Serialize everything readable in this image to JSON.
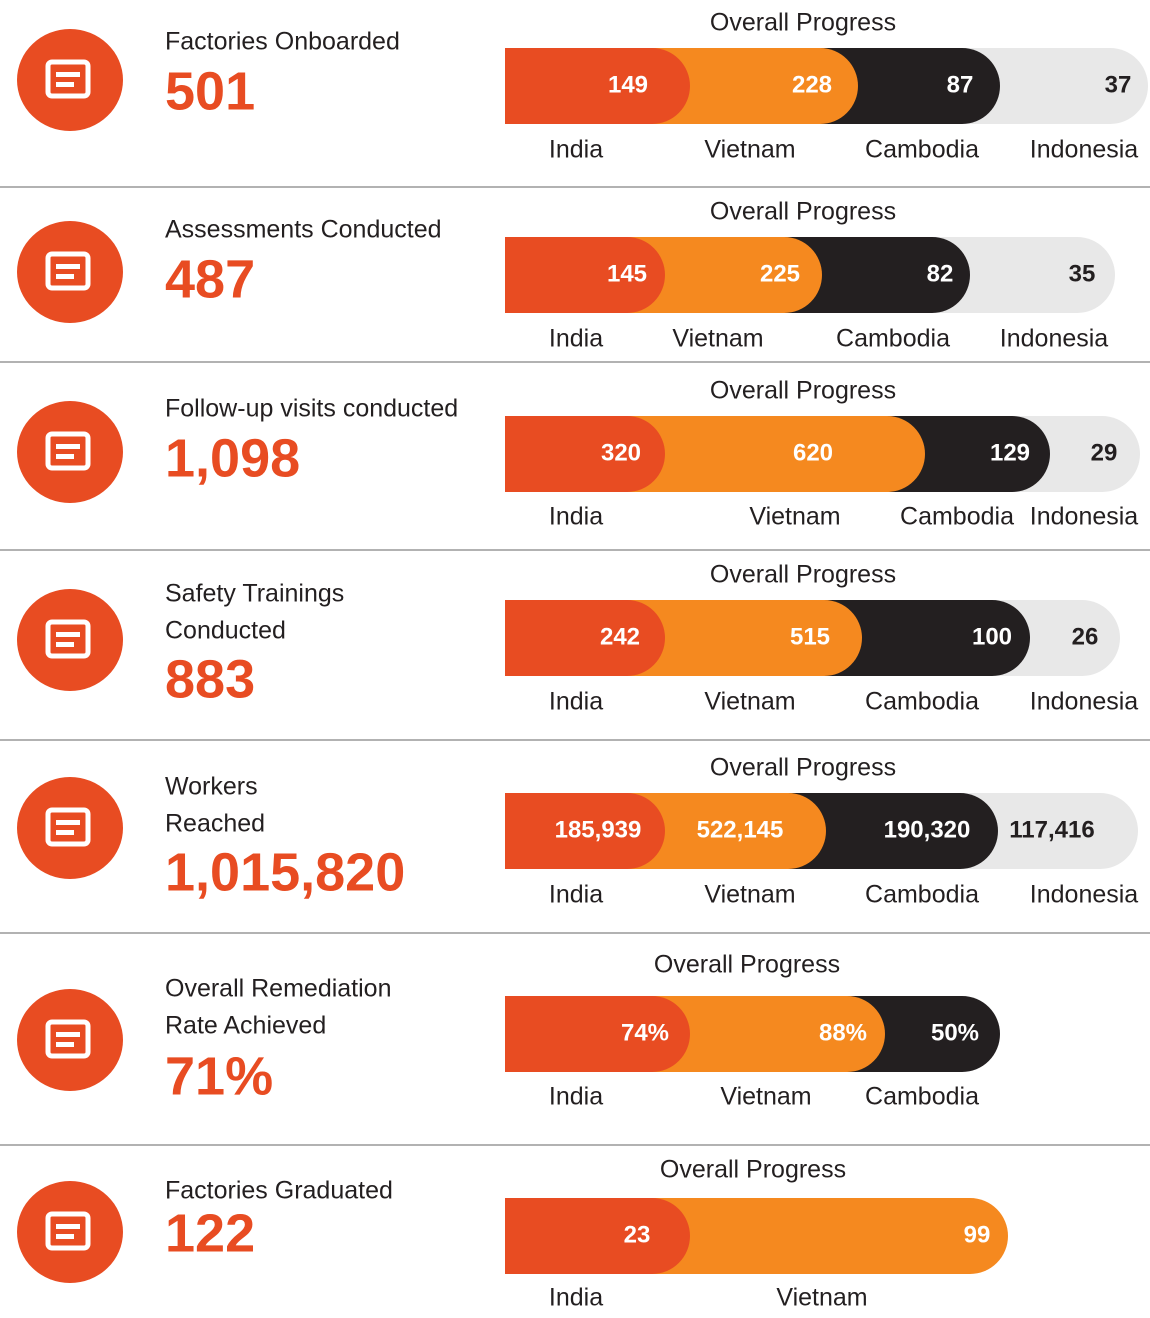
{
  "colors": [
    "#e84c22",
    "#f5891f",
    "#231f20",
    "#e8e8e8"
  ],
  "rows": [
    {
      "title": [
        "Factories Onboarded"
      ],
      "total": "501",
      "progress_label": "Overall Progress",
      "segments": [
        {
          "country": "India",
          "value": "149"
        },
        {
          "country": "Vietnam",
          "value": "228"
        },
        {
          "country": "Cambodia",
          "value": "87"
        },
        {
          "country": "Indonesia",
          "value": "37"
        }
      ]
    },
    {
      "title": [
        "Assessments Conducted"
      ],
      "total": "487",
      "progress_label": "Overall Progress",
      "segments": [
        {
          "country": "India",
          "value": "145"
        },
        {
          "country": "Vietnam",
          "value": "225"
        },
        {
          "country": "Cambodia",
          "value": "82"
        },
        {
          "country": "Indonesia",
          "value": "35"
        }
      ]
    },
    {
      "title": [
        "Follow-up visits conducted"
      ],
      "total": "1,098",
      "progress_label": "Overall Progress",
      "segments": [
        {
          "country": "India",
          "value": "320"
        },
        {
          "country": "Vietnam",
          "value": "620"
        },
        {
          "country": "Cambodia",
          "value": "129"
        },
        {
          "country": "Indonesia",
          "value": "29"
        }
      ]
    },
    {
      "title": [
        "Safety Trainings",
        "Conducted"
      ],
      "total": "883",
      "progress_label": "Overall Progress",
      "segments": [
        {
          "country": "India",
          "value": "242"
        },
        {
          "country": "Vietnam",
          "value": "515"
        },
        {
          "country": "Cambodia",
          "value": "100"
        },
        {
          "country": "Indonesia",
          "value": "26"
        }
      ]
    },
    {
      "title": [
        "Workers",
        "Reached"
      ],
      "total": "1,015,820",
      "progress_label": "Overall Progress",
      "segments": [
        {
          "country": "India",
          "value": "185,939"
        },
        {
          "country": "Vietnam",
          "value": "522,145"
        },
        {
          "country": "Cambodia",
          "value": "190,320"
        },
        {
          "country": "Indonesia",
          "value": "117,416"
        }
      ]
    },
    {
      "title": [
        "Overall Remediation",
        "Rate Achieved"
      ],
      "total": "71%",
      "progress_label": "Overall Progress",
      "segments": [
        {
          "country": "India",
          "value": "74%"
        },
        {
          "country": "Vietnam",
          "value": "88%"
        },
        {
          "country": "Cambodia",
          "value": "50%"
        }
      ]
    },
    {
      "title": [
        "Factories Graduated"
      ],
      "total": "122",
      "progress_label": "Overall Progress",
      "segments": [
        {
          "country": "India",
          "value": "23"
        },
        {
          "country": "Vietnam",
          "value": "99"
        }
      ]
    }
  ]
}
